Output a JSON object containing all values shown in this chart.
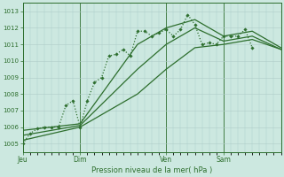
{
  "bg_color": "#cce8e0",
  "line_color": "#2d6e2d",
  "title": "Pression niveau de la mer( hPa )",
  "ylim": [
    1004.5,
    1013.5
  ],
  "yticks": [
    1005,
    1006,
    1007,
    1008,
    1009,
    1010,
    1011,
    1012,
    1013
  ],
  "day_labels": [
    "Jeu",
    "Dim",
    "Ven",
    "Sam"
  ],
  "day_positions": [
    0,
    48,
    120,
    168
  ],
  "total_hours": 216,
  "series": [
    {
      "x": [
        0,
        6,
        12,
        18,
        24,
        30,
        36,
        42,
        48,
        54,
        60,
        66,
        72,
        78,
        84,
        90,
        96,
        102,
        108,
        114,
        120,
        126,
        132,
        138,
        144,
        150,
        156,
        162,
        168,
        174,
        180,
        186,
        192
      ],
      "y": [
        1005.0,
        1005.6,
        1005.9,
        1006.0,
        1006.0,
        1006.0,
        1007.3,
        1007.6,
        1006.0,
        1007.6,
        1008.7,
        1009.0,
        1010.3,
        1010.4,
        1010.7,
        1010.3,
        1011.8,
        1011.8,
        1011.5,
        1011.7,
        1011.9,
        1011.5,
        1011.9,
        1012.8,
        1012.2,
        1011.0,
        1011.1,
        1011.0,
        1011.5,
        1011.5,
        1011.5,
        1011.9,
        1010.8
      ],
      "style": ":",
      "marker": "D",
      "markersize": 1.8,
      "linewidth": 0.9
    },
    {
      "x": [
        0,
        48,
        96,
        120,
        144,
        168,
        192,
        216
      ],
      "y": [
        1005.8,
        1006.2,
        1011.0,
        1012.0,
        1012.5,
        1011.5,
        1011.8,
        1010.8
      ],
      "style": "-",
      "marker": null,
      "markersize": 0,
      "linewidth": 0.9
    },
    {
      "x": [
        0,
        48,
        96,
        120,
        144,
        168,
        192,
        216
      ],
      "y": [
        1005.5,
        1006.1,
        1009.5,
        1011.0,
        1012.0,
        1011.2,
        1011.5,
        1010.7
      ],
      "style": "-",
      "marker": null,
      "markersize": 0,
      "linewidth": 0.9
    },
    {
      "x": [
        0,
        48,
        96,
        120,
        144,
        168,
        192,
        216
      ],
      "y": [
        1005.2,
        1006.0,
        1008.0,
        1009.5,
        1010.8,
        1011.0,
        1011.3,
        1010.7
      ],
      "style": "-",
      "marker": null,
      "markersize": 0,
      "linewidth": 0.9
    }
  ]
}
